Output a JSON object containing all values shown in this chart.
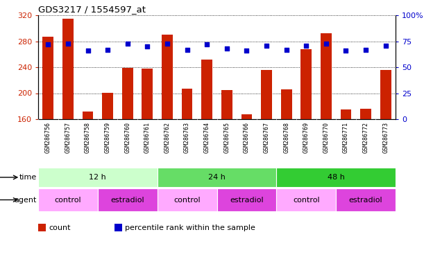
{
  "title": "GDS3217 / 1554597_at",
  "samples": [
    "GSM286756",
    "GSM286757",
    "GSM286758",
    "GSM286759",
    "GSM286760",
    "GSM286761",
    "GSM286762",
    "GSM286763",
    "GSM286764",
    "GSM286765",
    "GSM286766",
    "GSM286767",
    "GSM286768",
    "GSM286769",
    "GSM286770",
    "GSM286771",
    "GSM286772",
    "GSM286773"
  ],
  "counts": [
    287,
    315,
    172,
    201,
    239,
    238,
    290,
    207,
    252,
    205,
    168,
    236,
    206,
    268,
    292,
    175,
    176,
    236
  ],
  "percentiles": [
    72,
    73,
    66,
    67,
    73,
    70,
    73,
    67,
    72,
    68,
    66,
    71,
    67,
    71,
    73,
    66,
    67,
    71
  ],
  "ylim_left": [
    160,
    320
  ],
  "ylim_right": [
    0,
    100
  ],
  "yticks_left": [
    160,
    200,
    240,
    280,
    320
  ],
  "yticks_right": [
    0,
    25,
    50,
    75,
    100
  ],
  "yticklabels_right": [
    "0",
    "25",
    "50",
    "75",
    "100%"
  ],
  "bar_color": "#cc2200",
  "dot_color": "#0000cc",
  "time_groups": [
    {
      "label": "12 h",
      "start": 0,
      "end": 6,
      "color": "#ccffcc"
    },
    {
      "label": "24 h",
      "start": 6,
      "end": 12,
      "color": "#66dd66"
    },
    {
      "label": "48 h",
      "start": 12,
      "end": 18,
      "color": "#33cc33"
    }
  ],
  "agent_groups": [
    {
      "label": "control",
      "start": 0,
      "end": 3,
      "color": "#ffaaff"
    },
    {
      "label": "estradiol",
      "start": 3,
      "end": 6,
      "color": "#dd44dd"
    },
    {
      "label": "control",
      "start": 6,
      "end": 9,
      "color": "#ffaaff"
    },
    {
      "label": "estradiol",
      "start": 9,
      "end": 12,
      "color": "#dd44dd"
    },
    {
      "label": "control",
      "start": 12,
      "end": 15,
      "color": "#ffaaff"
    },
    {
      "label": "estradiol",
      "start": 15,
      "end": 18,
      "color": "#dd44dd"
    }
  ],
  "legend_count_label": "count",
  "legend_pct_label": "percentile rank within the sample",
  "time_label": "time",
  "agent_label": "agent"
}
